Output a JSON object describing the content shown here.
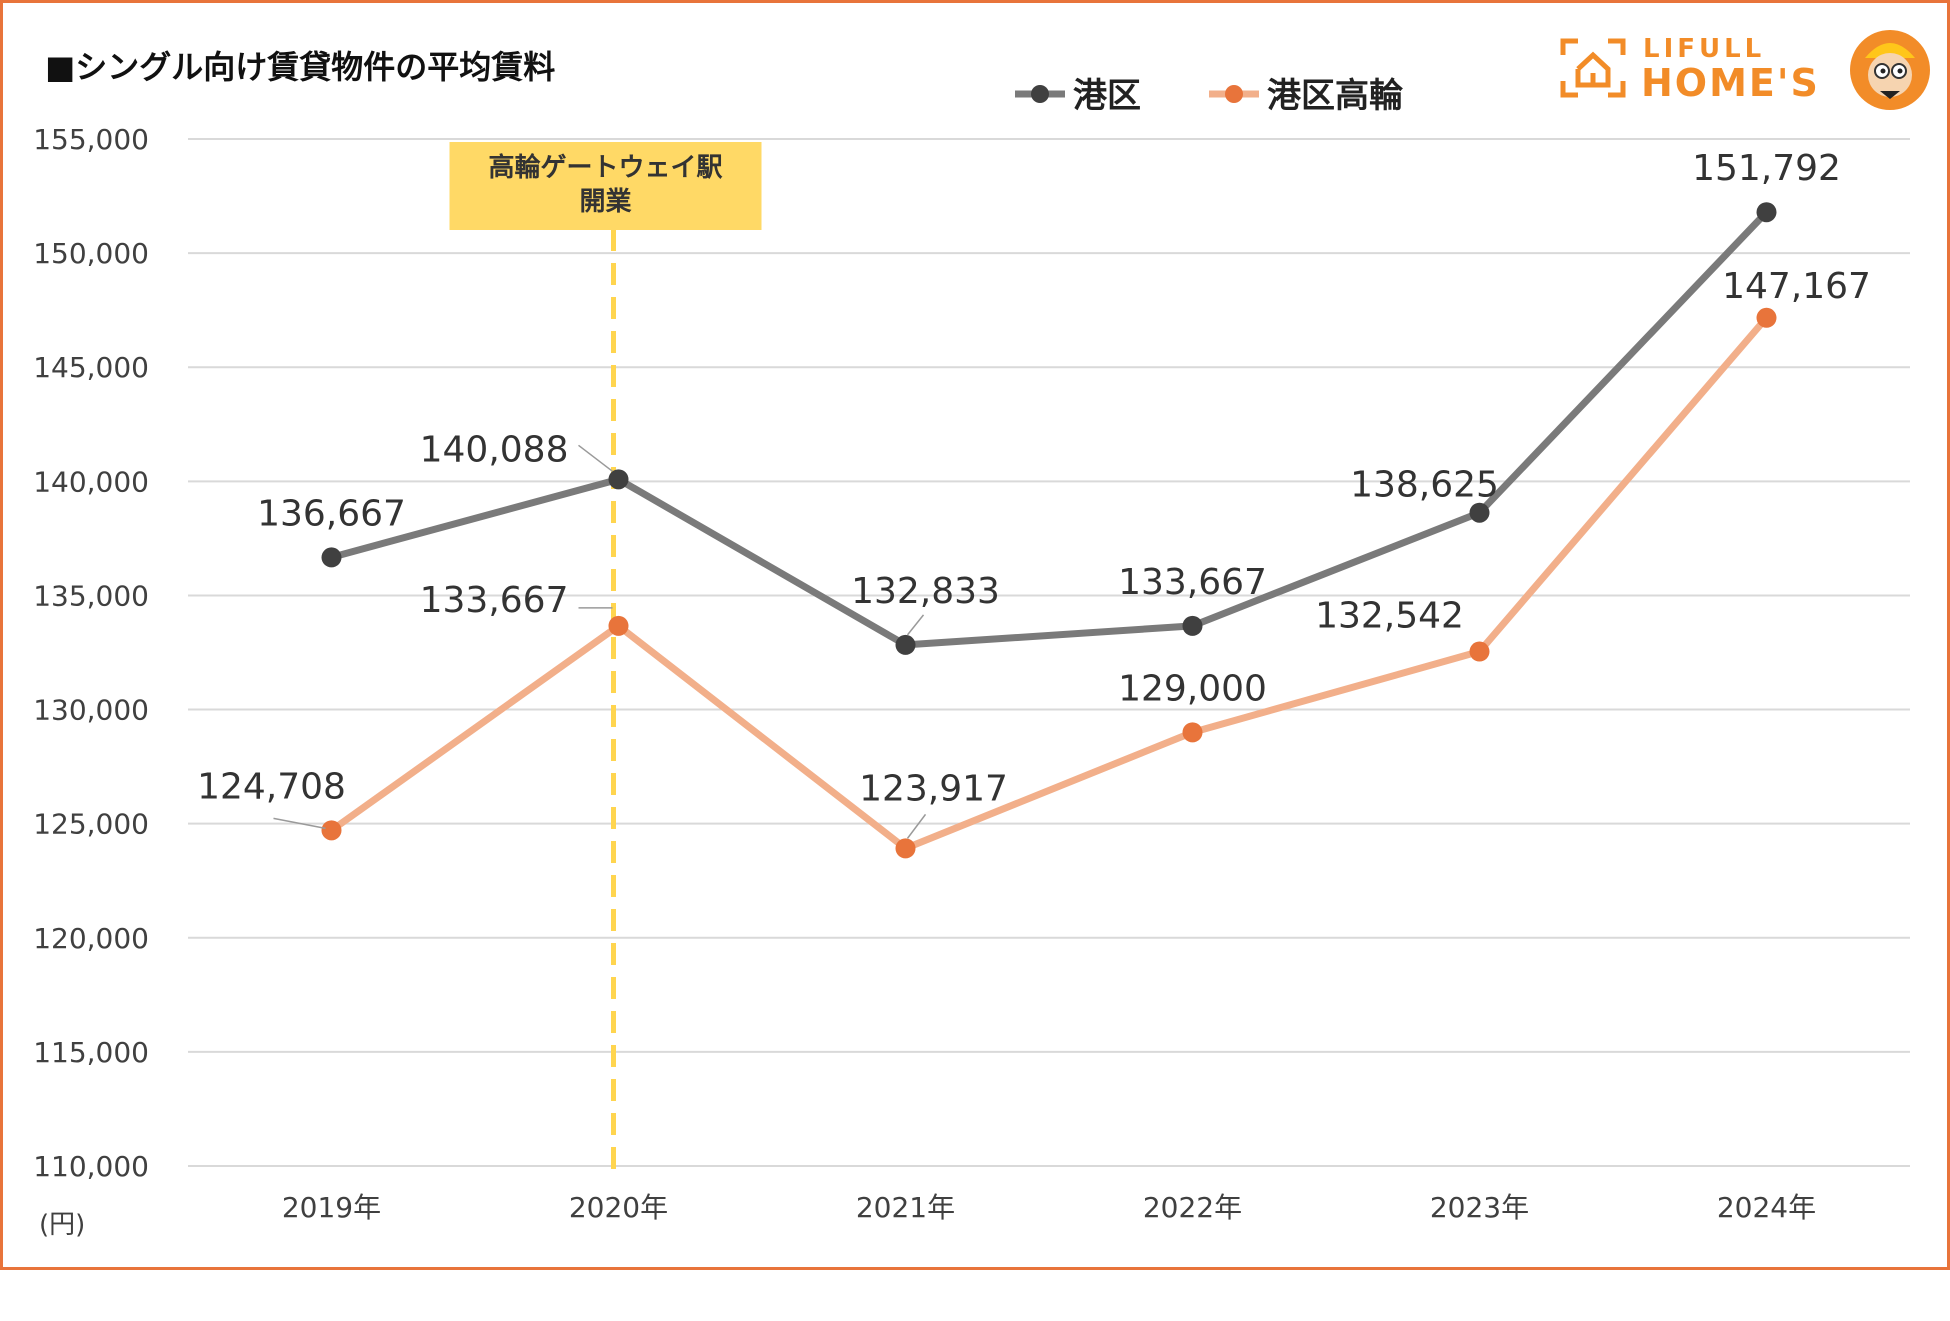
{
  "chart_data": {
    "type": "line",
    "title": "■シングル向け賃貸物件の平均賃料",
    "categories": [
      "2019年",
      "2020年",
      "2021年",
      "2022年",
      "2023年",
      "2024年"
    ],
    "series": [
      {
        "name": "港区",
        "values": [
          136667,
          140088,
          132833,
          133667,
          138625,
          151792
        ],
        "labels": [
          "136,667",
          "140,088",
          "132,833",
          "133,667",
          "138,625",
          "151,792"
        ],
        "color": "#7a7a7a",
        "marker_color": "#404040"
      },
      {
        "name": "港区高輪",
        "values": [
          124708,
          133667,
          123917,
          129000,
          132542,
          147167
        ],
        "labels": [
          "124,708",
          "133,667",
          "123,917",
          "129,000",
          "132,542",
          "147,167"
        ],
        "color": "#F2AF8A",
        "marker_color": "#E8743B"
      }
    ],
    "ylim": [
      110000,
      155000
    ],
    "yticks": [
      110000,
      115000,
      120000,
      125000,
      130000,
      135000,
      140000,
      145000,
      150000,
      155000
    ],
    "ytick_labels": [
      "110,000",
      "115,000",
      "120,000",
      "125,000",
      "130,000",
      "135,000",
      "140,000",
      "145,000",
      "150,000",
      "155,000"
    ],
    "ylabel": "(円)",
    "xlabel": "",
    "grid": true,
    "legend_position": "top-center",
    "annotation": {
      "category": "2020年",
      "text_line1": "高輪ゲートウェイ駅",
      "text_line2": "開業",
      "line_color": "#FFD54F",
      "box_color": "#FFD966"
    }
  },
  "logo": {
    "line1": "LIFULL",
    "line2": "HOME'S",
    "color": "#F28C28"
  },
  "colors": {
    "border": "#E8743B",
    "grid": "#d9d9d9",
    "axis_text": "#404040"
  }
}
